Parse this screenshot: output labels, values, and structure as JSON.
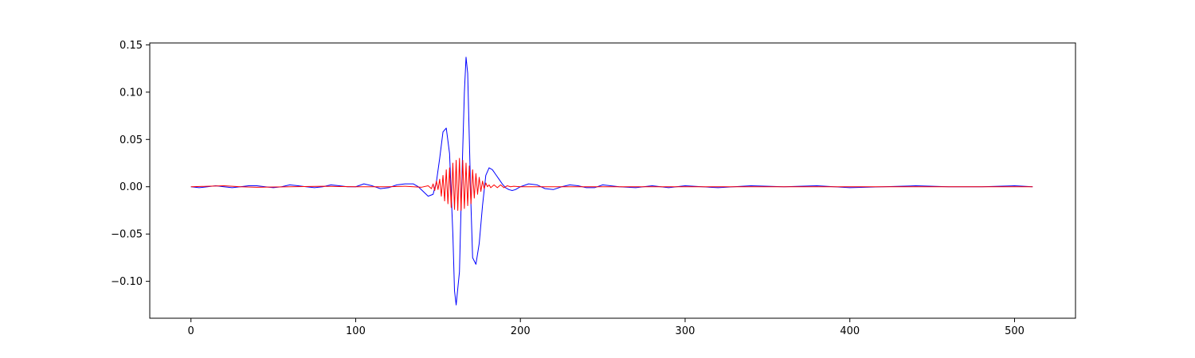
{
  "chart_data": {
    "type": "line",
    "title": "",
    "xlabel": "",
    "ylabel": "",
    "xlim": [
      -25,
      537
    ],
    "ylim": [
      -0.139,
      0.152
    ],
    "x_ticks": [
      0,
      100,
      200,
      300,
      400,
      500
    ],
    "x_tick_labels": [
      "0",
      "100",
      "200",
      "300",
      "400",
      "500"
    ],
    "y_ticks": [
      -0.1,
      -0.05,
      0.0,
      0.05,
      0.1,
      0.15
    ],
    "y_tick_labels": [
      "−0.10",
      "−0.05",
      "0.00",
      "0.05",
      "0.10",
      "0.15"
    ],
    "grid": false,
    "legend": "none",
    "series": [
      {
        "color": "#0000ff",
        "x": [
          0,
          5,
          10,
          15,
          20,
          25,
          30,
          35,
          40,
          45,
          50,
          55,
          60,
          65,
          70,
          75,
          80,
          85,
          90,
          95,
          100,
          105,
          110,
          115,
          120,
          125,
          130,
          135,
          138,
          141,
          144,
          147,
          149,
          151,
          153,
          155,
          157,
          159,
          160,
          161,
          163,
          164,
          165,
          166,
          167,
          168,
          169,
          170,
          171,
          173,
          175,
          177,
          179,
          181,
          183,
          185,
          187,
          189,
          191,
          193,
          195,
          197,
          200,
          205,
          210,
          215,
          220,
          225,
          230,
          235,
          240,
          245,
          250,
          260,
          270,
          280,
          290,
          300,
          320,
          340,
          360,
          380,
          400,
          420,
          440,
          460,
          480,
          500,
          511
        ],
        "y": [
          0.0,
          -0.001,
          0.0,
          0.001,
          0.0,
          -0.001,
          0.0,
          0.001,
          0.001,
          0.0,
          -0.001,
          0.0,
          0.002,
          0.001,
          0.0,
          -0.001,
          0.0,
          0.002,
          0.001,
          0.0,
          0.0,
          0.003,
          0.001,
          -0.002,
          -0.001,
          0.002,
          0.003,
          0.003,
          0.0,
          -0.005,
          -0.01,
          -0.008,
          0.005,
          0.03,
          0.058,
          0.062,
          0.035,
          -0.05,
          -0.11,
          -0.125,
          -0.09,
          -0.02,
          0.04,
          0.1,
          0.137,
          0.12,
          0.05,
          -0.02,
          -0.075,
          -0.082,
          -0.06,
          -0.02,
          0.012,
          0.02,
          0.018,
          0.013,
          0.008,
          0.003,
          -0.001,
          -0.003,
          -0.004,
          -0.003,
          0.0,
          0.003,
          0.002,
          -0.002,
          -0.003,
          0.0,
          0.002,
          0.001,
          -0.001,
          -0.001,
          0.002,
          0.0,
          -0.001,
          0.001,
          -0.001,
          0.001,
          -0.001,
          0.001,
          0.0,
          0.001,
          -0.001,
          0.0,
          0.001,
          0.0,
          0.0,
          0.001,
          0.0
        ]
      },
      {
        "color": "#ff0000",
        "x": [
          0,
          10,
          20,
          30,
          40,
          60,
          80,
          100,
          120,
          130,
          140,
          144,
          146,
          147,
          148,
          149,
          150,
          151,
          152,
          153,
          154,
          155,
          156,
          157,
          158,
          159,
          160,
          161,
          162,
          163,
          164,
          165,
          166,
          167,
          168,
          169,
          170,
          171,
          172,
          173,
          174,
          175,
          176,
          177,
          178,
          179,
          180,
          181,
          182,
          184,
          186,
          188,
          190,
          192,
          194,
          196,
          200,
          220,
          250,
          300,
          350,
          400,
          450,
          511
        ],
        "y": [
          0.0,
          0.0005,
          0.001,
          0.0,
          -0.0005,
          0.0,
          0.0005,
          0.0,
          0.0,
          0.0005,
          -0.0005,
          0.001,
          -0.002,
          0.003,
          -0.004,
          0.006,
          -0.003,
          0.008,
          -0.01,
          0.012,
          -0.015,
          0.018,
          -0.018,
          0.02,
          -0.022,
          0.025,
          -0.024,
          0.028,
          -0.025,
          0.03,
          -0.025,
          0.028,
          -0.023,
          0.025,
          -0.02,
          0.022,
          -0.018,
          0.018,
          -0.012,
          0.014,
          -0.008,
          0.01,
          -0.005,
          0.006,
          -0.002,
          0.004,
          0.0,
          0.002,
          -0.001,
          0.002,
          -0.001,
          0.002,
          -0.001,
          0.001,
          0.0,
          0.0005,
          0.0,
          0.0,
          0.0,
          0.0,
          0.0,
          0.0,
          0.0,
          0.0
        ]
      }
    ]
  }
}
